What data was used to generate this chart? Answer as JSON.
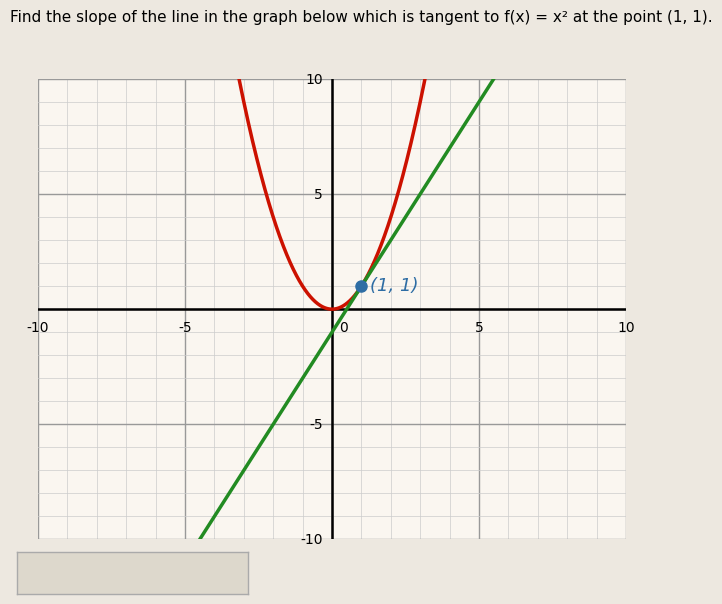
{
  "title": "Find the slope of the line in the graph below which is tangent to f(x) = x² at the point (1, 1).",
  "xlim": [
    -10,
    10
  ],
  "ylim": [
    -10,
    10
  ],
  "parabola_color": "#cc1100",
  "tangent_color": "#228B22",
  "point_color": "#2e6da4",
  "point_x": 1,
  "point_y": 1,
  "point_label": "(1, 1)",
  "grid_minor_color": "#cccccc",
  "grid_major_color": "#999999",
  "bg_color": "#faf6f0",
  "fig_bg_color": "#ede8e0",
  "tangent_slope": 2,
  "tangent_intercept": -1,
  "answer_box_color": "#ddd8cc",
  "axis_label_fontsize": 10,
  "title_fontsize": 11
}
